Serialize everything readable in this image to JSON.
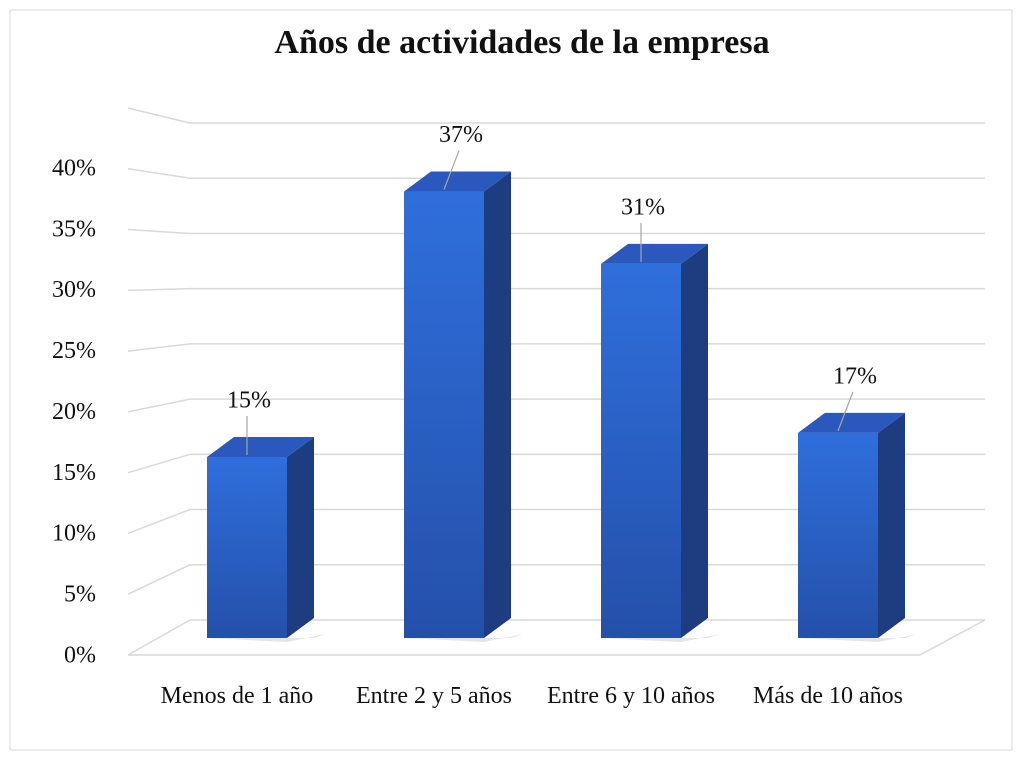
{
  "chart_data": {
    "type": "bar3d",
    "title": "Años de actividades de la empresa",
    "categories": [
      "Menos de 1 año",
      "Entre 2 y 5 años",
      "Entre 6 y 10 años",
      "Más de 10 años"
    ],
    "values": [
      15,
      37,
      31,
      17
    ],
    "value_labels": [
      "15%",
      "37%",
      "31%",
      "17%"
    ],
    "color": "#2e64c8",
    "ylim": [
      0,
      45
    ],
    "yticks": [
      {
        "value": 0,
        "label": "0%"
      },
      {
        "value": 5,
        "label": "5%"
      },
      {
        "value": 10,
        "label": "10%"
      },
      {
        "value": 15,
        "label": "15%"
      },
      {
        "value": 20,
        "label": "20%"
      },
      {
        "value": 25,
        "label": "25%"
      },
      {
        "value": 30,
        "label": "30%"
      },
      {
        "value": 35,
        "label": "35%"
      },
      {
        "value": 40,
        "label": "40%"
      }
    ],
    "grid": true
  }
}
